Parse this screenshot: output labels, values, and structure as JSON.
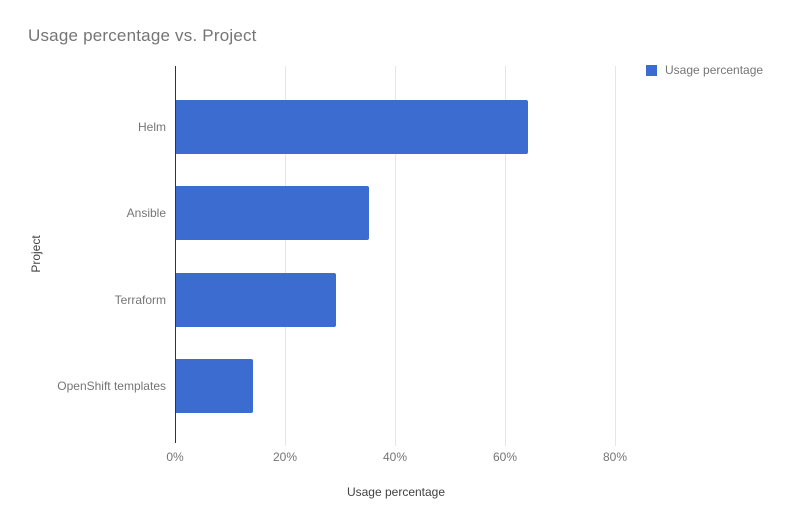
{
  "chart": {
    "title": "Usage percentage vs. Project",
    "legend": {
      "label": "Usage percentage",
      "position": "top-right"
    },
    "x_axis": {
      "title": "Usage percentage",
      "ticks": [
        "0%",
        "20%",
        "40%",
        "60%",
        "80%"
      ]
    },
    "y_axis": {
      "title": "Project"
    },
    "colors": {
      "bar": "#3d6cd0",
      "gridline": "#e6e6e6",
      "axis_line": "#333333",
      "title_text": "#757575",
      "tick_text": "#757575",
      "axis_title_text": "#424242"
    }
  },
  "chart_data": {
    "type": "bar",
    "orientation": "horizontal",
    "title": "Usage percentage vs. Project",
    "xlabel": "Usage percentage",
    "ylabel": "Project",
    "categories": [
      "Helm",
      "Ansible",
      "Terraform",
      "OpenShift templates"
    ],
    "series": [
      {
        "name": "Usage percentage",
        "values": [
          64,
          35,
          29,
          14
        ]
      }
    ],
    "value_unit": "%",
    "xlim": [
      0,
      84
    ],
    "x_tick_values": [
      0,
      20,
      40,
      60,
      80
    ],
    "grid": true,
    "legend_position": "top-right"
  }
}
